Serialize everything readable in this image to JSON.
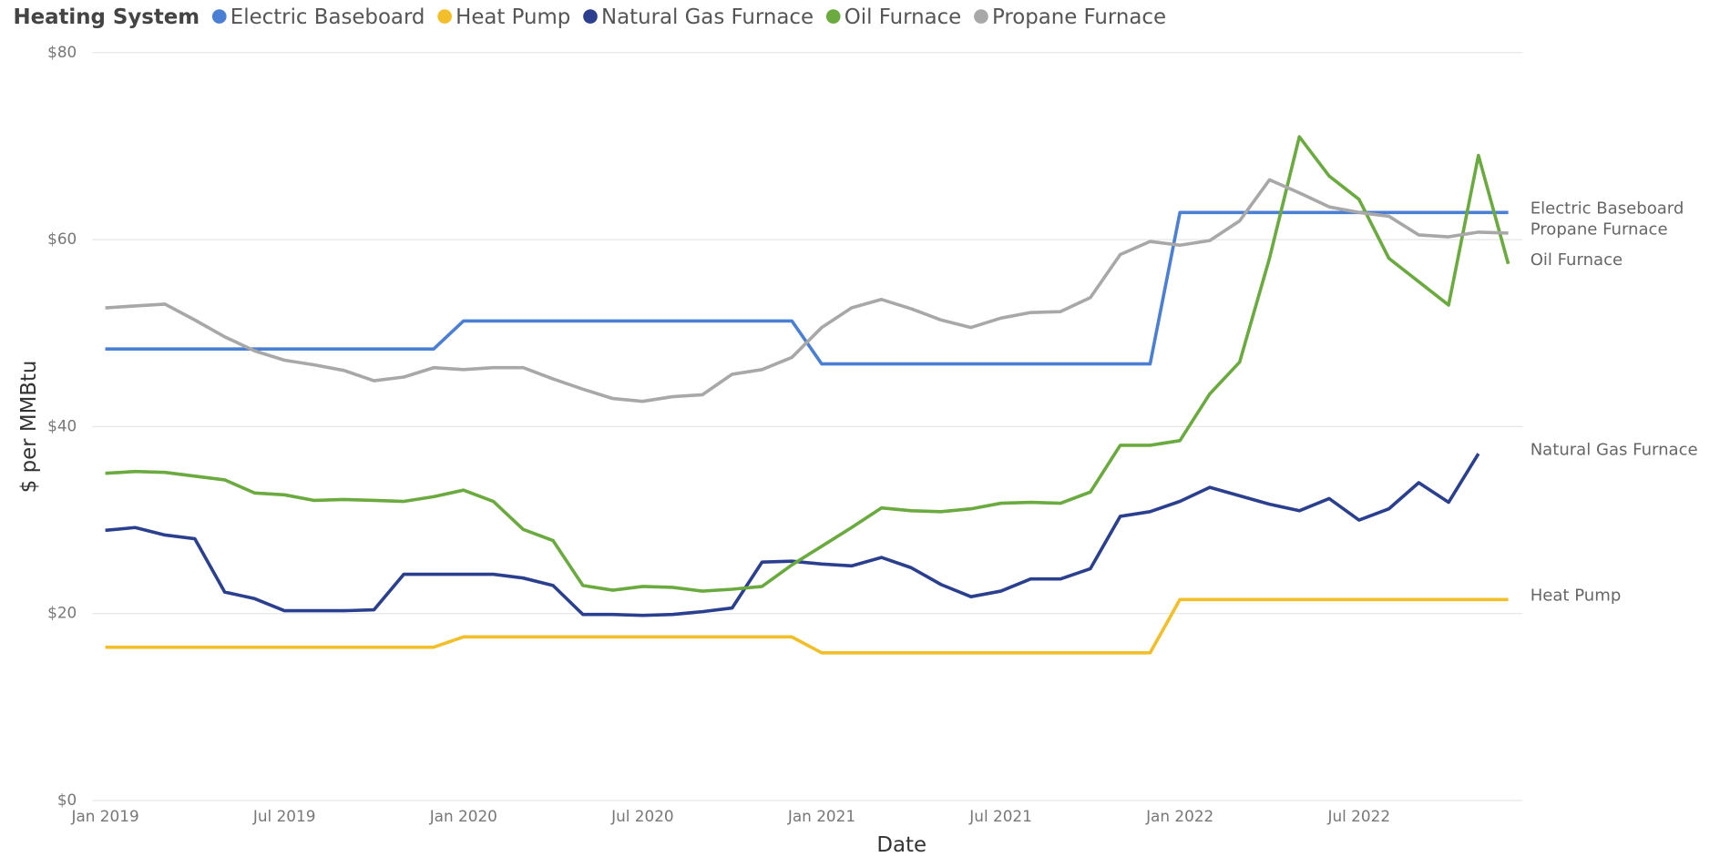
{
  "chart_data": {
    "type": "line",
    "legend_title": "Heating System",
    "x_label": "Date",
    "y_label": "$ per MMBtu",
    "x": [
      "2019-01",
      "2019-02",
      "2019-03",
      "2019-04",
      "2019-05",
      "2019-06",
      "2019-07",
      "2019-08",
      "2019-09",
      "2019-10",
      "2019-11",
      "2019-12",
      "2020-01",
      "2020-02",
      "2020-03",
      "2020-04",
      "2020-05",
      "2020-06",
      "2020-07",
      "2020-08",
      "2020-09",
      "2020-10",
      "2020-11",
      "2020-12",
      "2021-01",
      "2021-02",
      "2021-03",
      "2021-04",
      "2021-05",
      "2021-06",
      "2021-07",
      "2021-08",
      "2021-09",
      "2021-10",
      "2021-11",
      "2021-12",
      "2022-01",
      "2022-02",
      "2022-03",
      "2022-04",
      "2022-05",
      "2022-06",
      "2022-07",
      "2022-08",
      "2022-09",
      "2022-10",
      "2022-11",
      "2022-12"
    ],
    "xlim": [
      "2019-01",
      "2022-12"
    ],
    "xticks": [
      {
        "value": "2019-01",
        "label": "Jan 2019"
      },
      {
        "value": "2019-07",
        "label": "Jul 2019"
      },
      {
        "value": "2020-01",
        "label": "Jan 2020"
      },
      {
        "value": "2020-07",
        "label": "Jul 2020"
      },
      {
        "value": "2021-01",
        "label": "Jan 2021"
      },
      {
        "value": "2021-07",
        "label": "Jul 2021"
      },
      {
        "value": "2022-01",
        "label": "Jan 2022"
      },
      {
        "value": "2022-07",
        "label": "Jul 2022"
      }
    ],
    "ylim": [
      0,
      80
    ],
    "yticks": [
      {
        "value": 0,
        "label": "$0"
      },
      {
        "value": 20,
        "label": "$20"
      },
      {
        "value": 40,
        "label": "$40"
      },
      {
        "value": 60,
        "label": "$60"
      },
      {
        "value": 80,
        "label": "$80"
      }
    ],
    "grid": true,
    "legend": "top-left",
    "end_labels": true,
    "series": [
      {
        "name": "Electric Baseboard",
        "color": "#4a7fd4",
        "values": [
          48.3,
          48.3,
          48.3,
          48.3,
          48.3,
          48.3,
          48.3,
          48.3,
          48.3,
          48.3,
          48.3,
          48.3,
          51.3,
          51.3,
          51.3,
          51.3,
          51.3,
          51.3,
          51.3,
          51.3,
          51.3,
          51.3,
          51.3,
          51.3,
          46.7,
          46.7,
          46.7,
          46.7,
          46.7,
          46.7,
          46.7,
          46.7,
          46.7,
          46.7,
          46.7,
          46.7,
          62.9,
          62.9,
          62.9,
          62.9,
          62.9,
          62.9,
          62.9,
          62.9,
          62.9,
          62.9,
          62.9,
          62.9
        ]
      },
      {
        "name": "Heat Pump",
        "color": "#f2bf2b",
        "values": [
          16.4,
          16.4,
          16.4,
          16.4,
          16.4,
          16.4,
          16.4,
          16.4,
          16.4,
          16.4,
          16.4,
          16.4,
          17.5,
          17.5,
          17.5,
          17.5,
          17.5,
          17.5,
          17.5,
          17.5,
          17.5,
          17.5,
          17.5,
          17.5,
          15.8,
          15.8,
          15.8,
          15.8,
          15.8,
          15.8,
          15.8,
          15.8,
          15.8,
          15.8,
          15.8,
          15.8,
          21.5,
          21.5,
          21.5,
          21.5,
          21.5,
          21.5,
          21.5,
          21.5,
          21.5,
          21.5,
          21.5,
          21.5
        ]
      },
      {
        "name": "Natural Gas Furnace",
        "color": "#2b3f8f",
        "values": [
          28.9,
          29.2,
          28.4,
          28.0,
          22.3,
          21.6,
          20.3,
          20.3,
          20.3,
          20.4,
          24.2,
          24.2,
          24.2,
          24.2,
          23.8,
          23.0,
          19.9,
          19.9,
          19.8,
          19.9,
          20.2,
          20.6,
          25.5,
          25.6,
          25.3,
          25.1,
          26.0,
          24.9,
          23.1,
          21.8,
          22.4,
          23.7,
          23.7,
          24.8,
          30.4,
          30.9,
          32.0,
          33.5,
          32.6,
          31.7,
          31.0,
          32.3,
          30.0,
          31.2,
          34.0,
          31.9,
          37.1,
          null
        ]
      },
      {
        "name": "Oil Furnace",
        "color": "#6aaa3f",
        "values": [
          35.0,
          35.2,
          35.1,
          34.7,
          34.3,
          32.9,
          32.7,
          32.1,
          32.2,
          32.1,
          32.0,
          32.5,
          33.2,
          32.0,
          29.0,
          27.8,
          23.0,
          22.5,
          22.9,
          22.8,
          22.4,
          22.6,
          22.9,
          25.2,
          27.2,
          29.2,
          31.3,
          31.0,
          30.9,
          31.2,
          31.8,
          31.9,
          31.8,
          33.0,
          38.0,
          38.0,
          38.5,
          43.5,
          46.9,
          58.0,
          71.0,
          66.8,
          64.3,
          58.0,
          55.5,
          53.0,
          69.0,
          57.4
        ]
      },
      {
        "name": "Propane Furnace",
        "color": "#a8a8a8",
        "values": [
          52.7,
          52.9,
          53.1,
          51.4,
          49.6,
          48.1,
          47.1,
          46.6,
          46.0,
          44.9,
          45.3,
          46.3,
          46.1,
          46.3,
          46.3,
          45.1,
          44.0,
          43.0,
          42.7,
          43.2,
          43.4,
          45.6,
          46.1,
          47.4,
          50.6,
          52.7,
          53.6,
          52.6,
          51.4,
          50.6,
          51.6,
          52.2,
          52.3,
          53.8,
          58.4,
          59.8,
          59.4,
          59.9,
          62.0,
          66.4,
          65.0,
          63.5,
          62.9,
          62.5,
          60.5,
          60.3,
          60.8,
          60.7
        ]
      }
    ]
  }
}
